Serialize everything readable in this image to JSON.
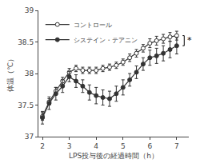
{
  "chart_data": {
    "type": "line",
    "x": [
      2.0,
      2.25,
      2.5,
      2.75,
      3.0,
      3.25,
      3.5,
      3.75,
      4.0,
      4.25,
      4.5,
      4.75,
      5.0,
      5.25,
      5.5,
      5.75,
      6.0,
      6.25,
      6.5,
      6.75,
      7.0
    ],
    "series": [
      {
        "name": "コントロール",
        "color": "#333333",
        "marker": "circle-open",
        "values": [
          37.32,
          37.55,
          37.72,
          37.88,
          38.02,
          38.08,
          38.05,
          38.05,
          38.05,
          38.08,
          38.1,
          38.13,
          38.18,
          38.25,
          38.32,
          38.4,
          38.48,
          38.52,
          38.55,
          38.58,
          38.6
        ],
        "errors": [
          0.06,
          0.05,
          0.06,
          0.06,
          0.06,
          0.05,
          0.05,
          0.05,
          0.05,
          0.05,
          0.05,
          0.05,
          0.05,
          0.06,
          0.06,
          0.06,
          0.07,
          0.07,
          0.07,
          0.07,
          0.07
        ]
      },
      {
        "name": "システイン・テアニン",
        "color": "#333333",
        "marker": "circle",
        "values": [
          37.3,
          37.53,
          37.68,
          37.8,
          37.95,
          37.88,
          37.8,
          37.7,
          37.65,
          37.62,
          37.6,
          37.68,
          37.78,
          37.9,
          38.02,
          38.15,
          38.25,
          38.28,
          38.32,
          38.38,
          38.44
        ],
        "errors": [
          0.1,
          0.1,
          0.1,
          0.1,
          0.08,
          0.1,
          0.1,
          0.12,
          0.13,
          0.12,
          0.12,
          0.12,
          0.12,
          0.1,
          0.1,
          0.1,
          0.12,
          0.12,
          0.12,
          0.13,
          0.13
        ]
      }
    ],
    "xlabel": "LPS投与後の経過時間（h）",
    "ylabel": "体温（℃）",
    "xlim": [
      1.85,
      7.45
    ],
    "ylim": [
      37.0,
      39.0
    ],
    "xticks": [
      2,
      3,
      4,
      5,
      6,
      7
    ],
    "yticks": [
      37.0,
      37.5,
      38.0,
      38.5,
      39.0
    ],
    "grid": false,
    "legend": "upper left",
    "annotations": [
      {
        "text": "*",
        "x": 7.28,
        "y_bottom": 38.44,
        "y_top": 38.6
      }
    ]
  }
}
